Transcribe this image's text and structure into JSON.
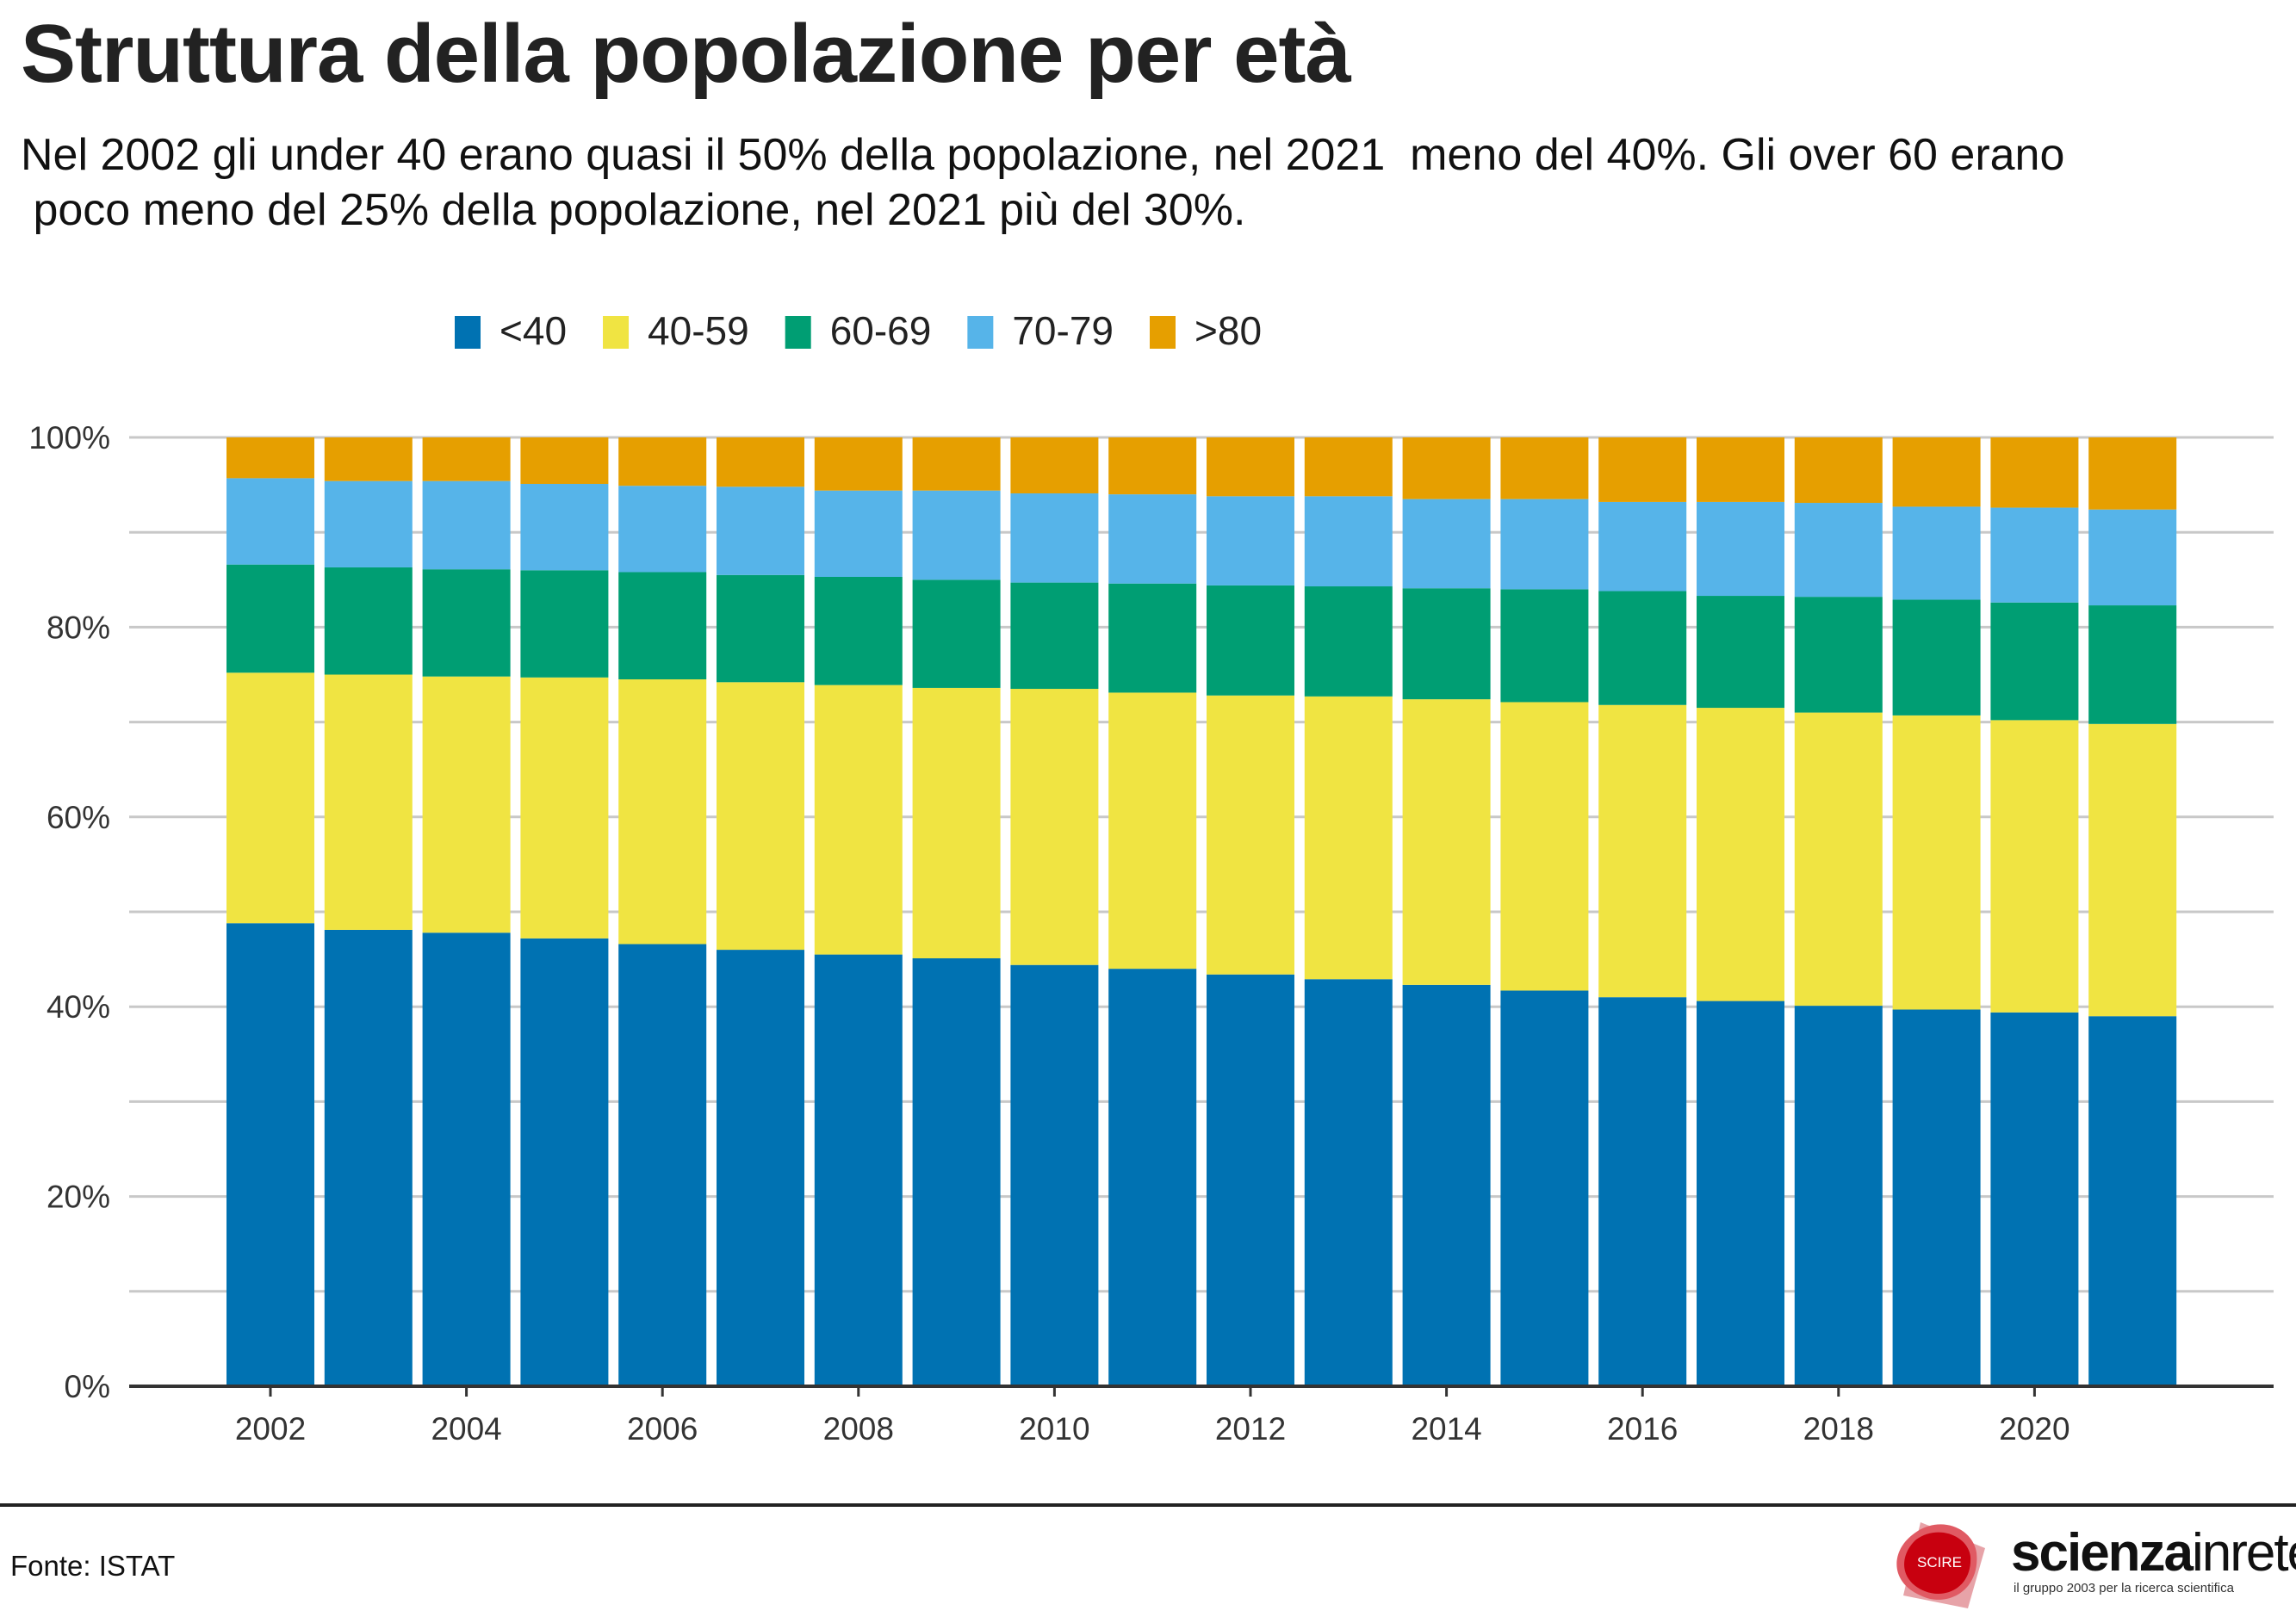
{
  "title": "Struttura della popolazione per età",
  "subtitle": "Nel 2002 gli under 40 erano quasi il 50% della popolazione, nel 2021  meno del 40%. Gli over 60 erano\n poco meno del 25% della popolazione, nel 2021 più del 30%.",
  "source": "Fonte: ISTAT",
  "logo": {
    "badge": "SCIRE",
    "name_bold": "scienza",
    "name_light": "inrete",
    "tagline": "il gruppo 2003 per la ricerca scientifica"
  },
  "chart_data": {
    "type": "bar",
    "stacked": true,
    "title": "Struttura della popolazione per età",
    "xlabel": "",
    "ylabel": "",
    "ylim": [
      0,
      100
    ],
    "yticks": [
      0,
      20,
      40,
      60,
      80,
      100
    ],
    "ytick_labels": [
      "0%",
      "20%",
      "40%",
      "60%",
      "80%",
      "100%"
    ],
    "xtick_labels": [
      "2002",
      "2004",
      "2006",
      "2008",
      "2010",
      "2012",
      "2014",
      "2016",
      "2018",
      "2020"
    ],
    "grid": true,
    "legend_position": "top",
    "categories": [
      2002,
      2003,
      2004,
      2005,
      2006,
      2007,
      2008,
      2009,
      2010,
      2011,
      2012,
      2013,
      2014,
      2015,
      2016,
      2017,
      2018,
      2019,
      2020,
      2021
    ],
    "series": [
      {
        "name": "<40",
        "color": "#0072B2",
        "values": [
          48.8,
          48.1,
          47.8,
          47.2,
          46.6,
          46.0,
          45.5,
          45.1,
          44.4,
          44.0,
          43.4,
          42.9,
          42.3,
          41.7,
          41.0,
          40.6,
          40.1,
          39.7,
          39.4,
          39.0
        ]
      },
      {
        "name": "40-59",
        "color": "#F0E442",
        "values": [
          26.4,
          26.9,
          27.0,
          27.5,
          27.9,
          28.2,
          28.4,
          28.5,
          29.1,
          29.1,
          29.4,
          29.8,
          30.1,
          30.4,
          30.8,
          30.9,
          30.9,
          31.0,
          30.8,
          30.8
        ]
      },
      {
        "name": "60-69",
        "color": "#009E73",
        "values": [
          11.4,
          11.3,
          11.3,
          11.3,
          11.3,
          11.3,
          11.4,
          11.4,
          11.2,
          11.5,
          11.6,
          11.6,
          11.7,
          11.9,
          12.0,
          11.8,
          12.2,
          12.2,
          12.4,
          12.5
        ]
      },
      {
        "name": "70-79",
        "color": "#56B4E9",
        "values": [
          9.1,
          9.1,
          9.3,
          9.1,
          9.1,
          9.3,
          9.1,
          9.4,
          9.4,
          9.4,
          9.4,
          9.5,
          9.4,
          9.5,
          9.4,
          9.9,
          9.9,
          9.8,
          10.0,
          10.1
        ]
      },
      {
        "name": ">80",
        "color": "#E69F00",
        "values": [
          4.3,
          4.6,
          4.6,
          4.9,
          5.1,
          5.2,
          5.6,
          5.6,
          5.9,
          6.0,
          6.2,
          6.2,
          6.5,
          6.5,
          6.8,
          6.8,
          6.9,
          7.3,
          7.4,
          7.6
        ]
      }
    ]
  }
}
